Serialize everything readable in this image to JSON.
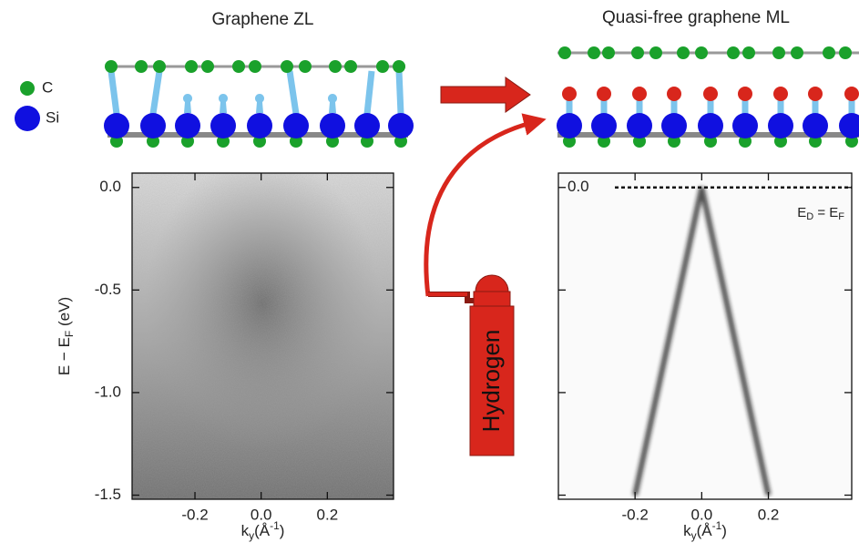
{
  "diagram": {
    "legend_c": "C",
    "legend_si": "Si",
    "hydrogen": "Hydrogen"
  },
  "chart_data": [
    {
      "type": "heatmap",
      "title": "Graphene ZL",
      "y_label": [
        "E − E",
        "F",
        " (eV)"
      ],
      "x_label": [
        "k",
        "y",
        "(Å",
        "-1",
        ")"
      ],
      "xlim": [
        -0.39,
        0.4
      ],
      "ylim": [
        -1.52,
        0.07
      ],
      "xticks": [
        -0.2,
        {
          "value": 0,
          "label": "0.0"
        },
        0.2
      ],
      "yticks": [
        {
          "value": 0,
          "label": "0.0"
        },
        -0.5,
        {
          "value": -1,
          "label": "-1.0"
        },
        -1.5
      ]
    },
    {
      "type": "dispersion",
      "title": "Quasi-free graphene ML",
      "x_label": [
        "k",
        "y",
        "(Å",
        "-1",
        ")"
      ],
      "annotation": [
        "E",
        "D",
        " = E",
        "F"
      ],
      "zero_label": "0.0",
      "xlim": [
        -0.43,
        0.45
      ],
      "ylim": [
        -1.52,
        0.07
      ],
      "xticks": [
        -0.2,
        {
          "value": 0,
          "label": "0.0"
        },
        0.2
      ],
      "yticks": [
        0,
        -0.5,
        -1,
        -1.5
      ],
      "series": [
        {
          "color": "#1a1a1a",
          "x": [
            -0.2,
            0,
            0.2
          ],
          "values": [
            -1.5,
            0,
            -1.5
          ]
        }
      ]
    }
  ]
}
